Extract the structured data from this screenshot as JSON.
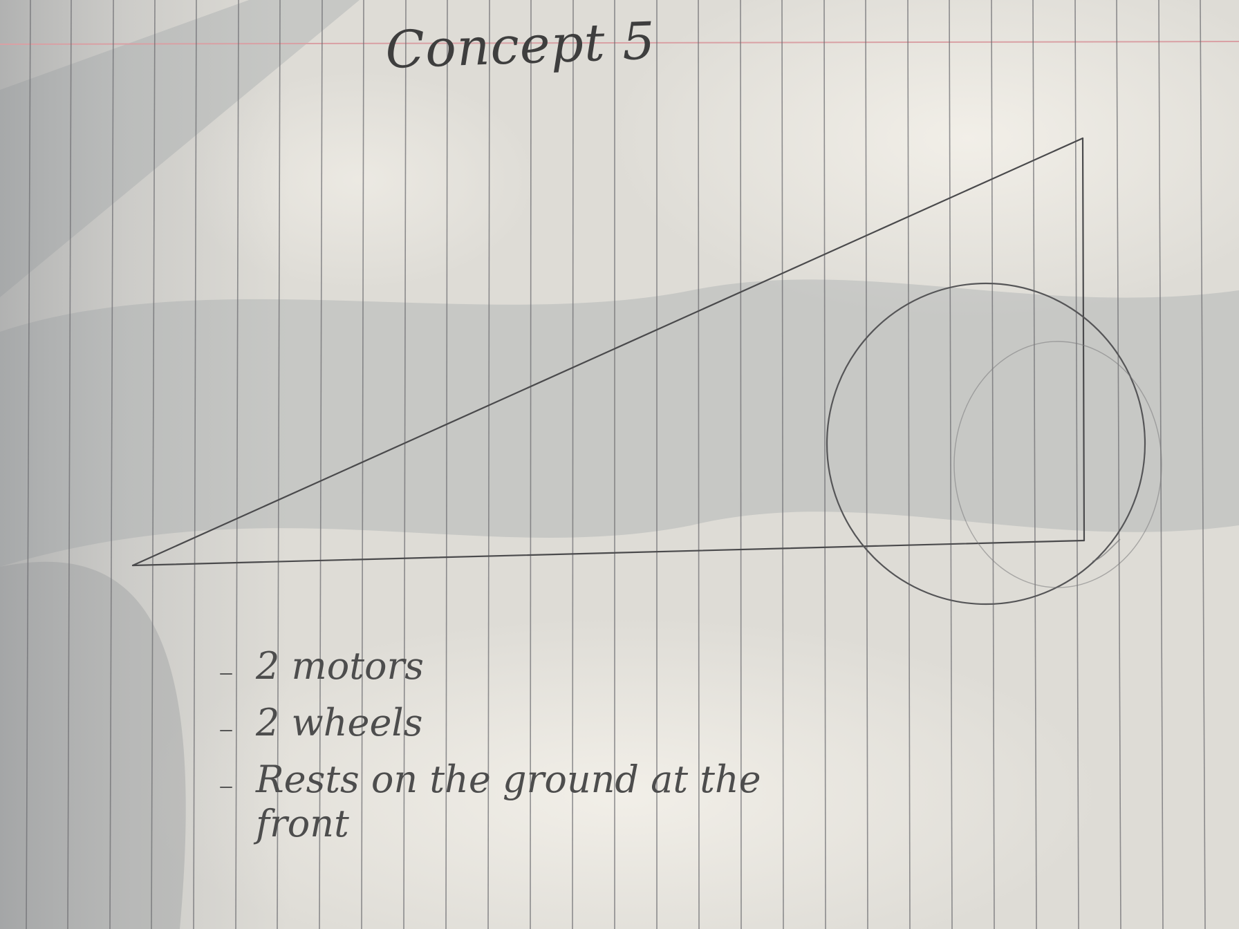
{
  "sketch": {
    "title": "Concept 5",
    "notes": [
      "2 motors",
      "2 wheels",
      "Rests on the ground at the front"
    ]
  }
}
